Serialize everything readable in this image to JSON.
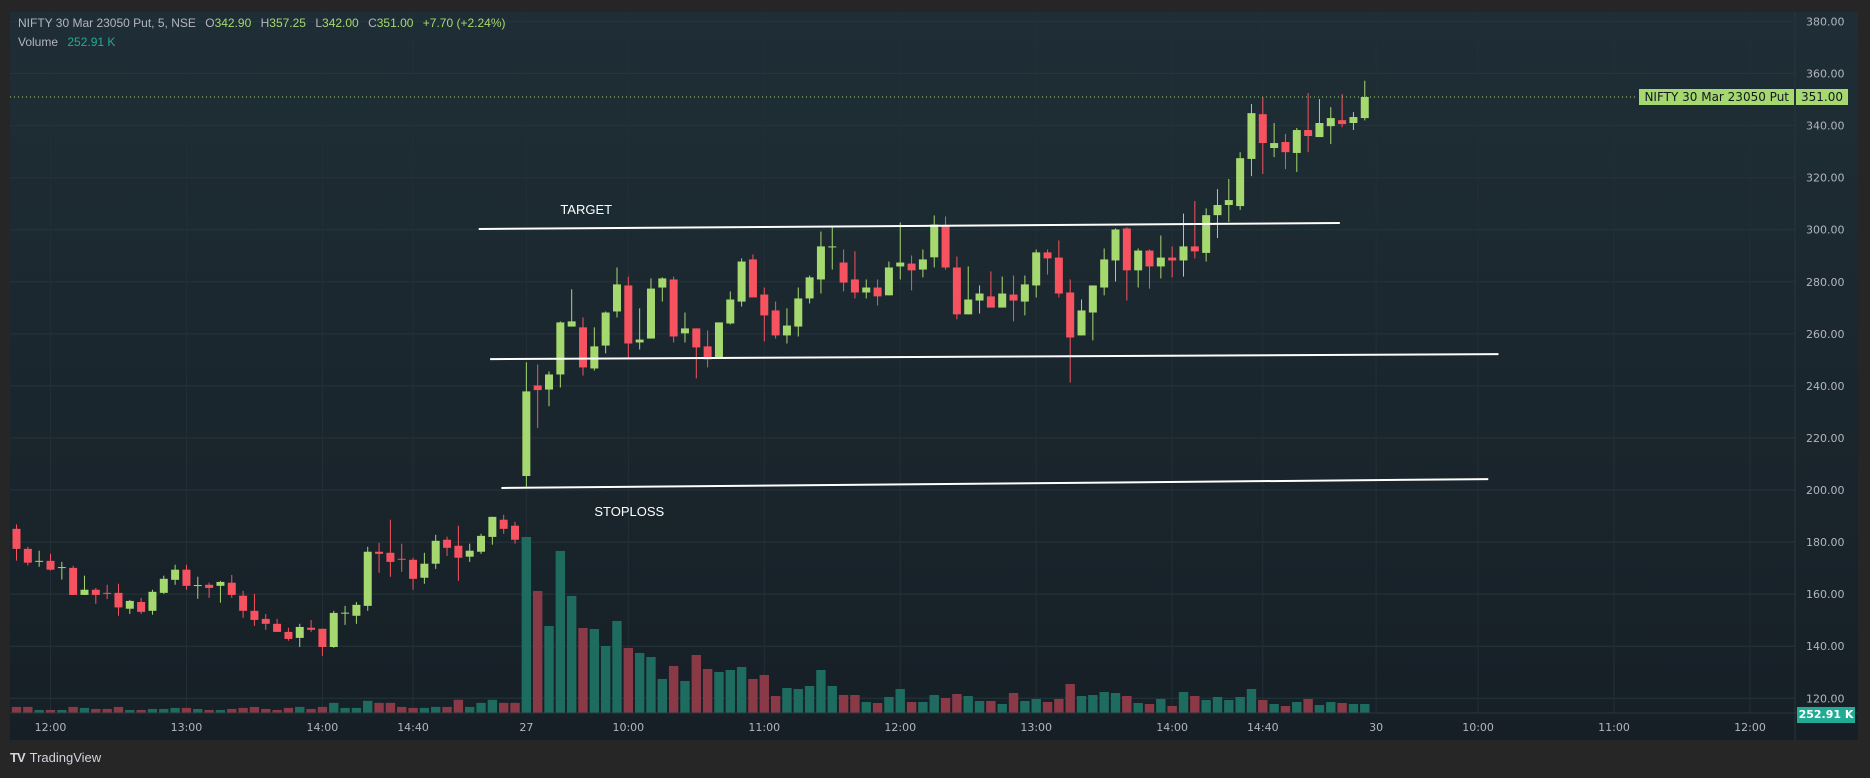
{
  "legend": {
    "symbol": "NIFTY 30 Mar 23050 Put, 5, NSE",
    "o_label": "O",
    "open": "342.90",
    "h_label": "H",
    "high": "357.25",
    "l_label": "L",
    "low": "342.00",
    "c_label": "C",
    "close": "351.00",
    "change": "+7.70 (+2.24%)",
    "volume_label": "Volume",
    "volume_value": "252.91 K"
  },
  "price_tag": {
    "name": "NIFTY 30 Mar 23050 Put",
    "value": "351.00"
  },
  "volume_tag": "252.91 K",
  "footer": {
    "brand": "TradingView",
    "logo": "TV"
  },
  "colors": {
    "up": "#a5d86e",
    "down": "#f7525f",
    "vol_up": "#1e6b60",
    "vol_down": "#8a3a46",
    "volume_tag": "#22ab94"
  },
  "chart_data": {
    "type": "candlestick",
    "title": "NIFTY 30 Mar 23050 Put, 5, NSE",
    "ylim": [
      120,
      380
    ],
    "y_ticks": [
      "120.00",
      "140.00",
      "160.00",
      "180.00",
      "200.00",
      "220.00",
      "240.00",
      "260.00",
      "280.00",
      "300.00",
      "320.00",
      "340.00",
      "360.00",
      "380.00"
    ],
    "y_tick_values": [
      120,
      140,
      160,
      180,
      200,
      220,
      240,
      260,
      280,
      300,
      320,
      340,
      360,
      380
    ],
    "x_ticks": [
      {
        "index": 3,
        "label": "12:00"
      },
      {
        "index": 15,
        "label": "13:00"
      },
      {
        "index": 27,
        "label": "14:00"
      },
      {
        "index": 35,
        "label": "14:40"
      },
      {
        "index": 45,
        "label": "27"
      },
      {
        "index": 54,
        "label": "10:00"
      },
      {
        "index": 66,
        "label": "11:00"
      },
      {
        "index": 78,
        "label": "12:00"
      },
      {
        "index": 90,
        "label": "13:00"
      },
      {
        "index": 102,
        "label": "14:00"
      },
      {
        "index": 110,
        "label": "14:40"
      },
      {
        "index": 120,
        "label": "30"
      },
      {
        "index": 129,
        "label": "10:00"
      },
      {
        "index": 141,
        "label": "11:00"
      },
      {
        "index": 153,
        "label": "12:00"
      }
    ],
    "ohlc": [
      [
        185.1,
        186.8,
        172.9,
        177.4
      ],
      [
        177.4,
        178.2,
        171.0,
        172.1
      ],
      [
        172.5,
        176.7,
        170.5,
        172.8
      ],
      [
        172.8,
        175.5,
        169.1,
        169.4
      ],
      [
        170.2,
        172.4,
        165.6,
        170.4
      ],
      [
        170.1,
        170.9,
        159.7,
        159.7
      ],
      [
        159.7,
        167.1,
        159.7,
        161.7
      ],
      [
        161.7,
        162.4,
        156.3,
        159.7
      ],
      [
        160.5,
        163.6,
        158.1,
        160.3
      ],
      [
        160.5,
        164.0,
        151.7,
        154.9
      ],
      [
        154.4,
        157.8,
        152.4,
        157.4
      ],
      [
        157.0,
        158.6,
        152.4,
        153.2
      ],
      [
        153.6,
        161.7,
        152.1,
        160.9
      ],
      [
        160.5,
        167.1,
        160.1,
        165.9
      ],
      [
        165.5,
        171.3,
        163.6,
        169.4
      ],
      [
        169.4,
        171.3,
        161.7,
        163.2
      ],
      [
        163.3,
        166.7,
        158.2,
        163.5
      ],
      [
        163.6,
        164.4,
        158.6,
        162.4
      ],
      [
        163.2,
        165.1,
        156.7,
        164.7
      ],
      [
        164.4,
        167.4,
        158.6,
        159.7
      ],
      [
        159.4,
        161.3,
        150.9,
        153.6
      ],
      [
        153.6,
        160.1,
        147.8,
        150.1
      ],
      [
        150.5,
        152.4,
        146.3,
        148.6
      ],
      [
        148.6,
        150.5,
        145.5,
        145.5
      ],
      [
        145.5,
        147.1,
        142.1,
        142.8
      ],
      [
        143.2,
        148.6,
        139.7,
        147.4
      ],
      [
        147.1,
        150.1,
        145.5,
        146.3
      ],
      [
        146.7,
        146.7,
        136.3,
        139.7
      ],
      [
        139.7,
        153.6,
        139.4,
        152.8
      ],
      [
        152.6,
        155.5,
        148.2,
        152.9
      ],
      [
        151.7,
        157.0,
        148.6,
        155.9
      ],
      [
        155.5,
        178.2,
        153.6,
        176.3
      ],
      [
        176.3,
        179.7,
        168.2,
        175.5
      ],
      [
        175.9,
        188.6,
        166.7,
        172.4
      ],
      [
        173.6,
        179.4,
        168.6,
        173.4
      ],
      [
        173.2,
        174.0,
        161.7,
        165.9
      ],
      [
        166.3,
        175.9,
        164.0,
        171.7
      ],
      [
        171.7,
        182.8,
        169.7,
        180.5
      ],
      [
        180.9,
        182.1,
        174.7,
        177.8
      ],
      [
        178.6,
        186.3,
        165.1,
        174.0
      ],
      [
        174.4,
        179.4,
        172.4,
        176.7
      ],
      [
        176.3,
        183.2,
        175.5,
        182.4
      ],
      [
        182.0,
        189.7,
        179.0,
        189.7
      ],
      [
        188.6,
        190.5,
        183.2,
        185.1
      ],
      [
        186.3,
        187.8,
        179.4,
        180.9
      ],
      [
        205.4,
        249.1,
        200.7,
        237.9
      ],
      [
        240.2,
        248.2,
        223.8,
        238.4
      ],
      [
        238.6,
        245.6,
        232.2,
        244.4
      ],
      [
        244.4,
        264.8,
        239.4,
        264.4
      ],
      [
        262.8,
        277.1,
        262.8,
        264.8
      ],
      [
        262.5,
        266.3,
        244.0,
        247.1
      ],
      [
        246.7,
        262.5,
        245.9,
        255.2
      ],
      [
        255.5,
        268.6,
        252.5,
        268.2
      ],
      [
        268.6,
        285.5,
        266.3,
        279.0
      ],
      [
        278.6,
        282.0,
        250.2,
        256.3
      ],
      [
        256.7,
        269.8,
        254.0,
        257.8
      ],
      [
        258.2,
        281.3,
        258.2,
        277.4
      ],
      [
        277.8,
        281.7,
        272.4,
        281.3
      ],
      [
        280.9,
        282.0,
        256.7,
        259.0
      ],
      [
        260.2,
        268.2,
        256.7,
        262.1
      ],
      [
        262.1,
        262.1,
        242.9,
        254.8
      ],
      [
        255.2,
        261.3,
        247.1,
        250.2
      ],
      [
        250.6,
        264.4,
        250.6,
        264.4
      ],
      [
        264.0,
        276.3,
        263.6,
        273.2
      ],
      [
        272.4,
        289.0,
        270.5,
        287.8
      ],
      [
        288.6,
        290.5,
        274.0,
        274.0
      ],
      [
        275.1,
        277.8,
        257.1,
        267.1
      ],
      [
        269.0,
        272.4,
        258.2,
        259.4
      ],
      [
        259.4,
        269.8,
        256.3,
        263.2
      ],
      [
        262.8,
        277.8,
        259.0,
        273.6
      ],
      [
        273.6,
        282.4,
        271.7,
        281.7
      ],
      [
        280.9,
        299.3,
        275.5,
        293.6
      ],
      [
        293.2,
        301.6,
        284.7,
        293.6
      ],
      [
        287.4,
        292.4,
        276.3,
        279.7
      ],
      [
        280.9,
        291.7,
        273.6,
        275.9
      ],
      [
        275.9,
        280.9,
        273.6,
        277.8
      ],
      [
        277.8,
        280.9,
        270.9,
        274.4
      ],
      [
        274.8,
        287.8,
        274.8,
        285.5
      ],
      [
        285.9,
        302.8,
        280.9,
        287.4
      ],
      [
        287.0,
        290.1,
        276.7,
        284.4
      ],
      [
        284.7,
        292.4,
        281.7,
        288.6
      ],
      [
        289.4,
        305.5,
        285.5,
        302.0
      ],
      [
        301.3,
        305.1,
        284.7,
        285.5
      ],
      [
        285.5,
        289.7,
        265.6,
        267.5
      ],
      [
        267.5,
        285.9,
        267.5,
        273.2
      ],
      [
        272.8,
        278.6,
        267.8,
        275.5
      ],
      [
        274.4,
        284.0,
        270.1,
        270.1
      ],
      [
        270.1,
        282.0,
        270.1,
        275.5
      ],
      [
        275.1,
        282.4,
        264.8,
        272.8
      ],
      [
        272.4,
        282.4,
        267.1,
        279.0
      ],
      [
        278.6,
        292.4,
        274.0,
        291.3
      ],
      [
        291.3,
        292.4,
        282.8,
        289.0
      ],
      [
        289.3,
        295.9,
        274.0,
        275.5
      ],
      [
        275.9,
        280.9,
        241.3,
        258.6
      ],
      [
        259.4,
        273.2,
        259.4,
        269.0
      ],
      [
        268.2,
        278.6,
        257.5,
        278.6
      ],
      [
        277.8,
        292.8,
        274.8,
        288.6
      ],
      [
        288.2,
        300.5,
        280.1,
        300.1
      ],
      [
        300.5,
        300.9,
        272.8,
        284.4
      ],
      [
        284.4,
        292.8,
        277.8,
        292.0
      ],
      [
        292.0,
        292.4,
        277.4,
        285.9
      ],
      [
        285.9,
        297.8,
        281.3,
        289.3
      ],
      [
        289.3,
        293.6,
        281.7,
        288.2
      ],
      [
        288.2,
        306.2,
        282.0,
        293.6
      ],
      [
        293.6,
        311.0,
        289.0,
        291.7
      ],
      [
        291.1,
        308.2,
        287.8,
        305.6
      ],
      [
        305.6,
        315.6,
        296.8,
        309.5
      ],
      [
        309.5,
        319.5,
        303.0,
        311.4
      ],
      [
        309.1,
        329.8,
        307.6,
        327.5
      ],
      [
        327.2,
        348.3,
        320.6,
        344.8
      ],
      [
        344.4,
        351.0,
        321.4,
        333.3
      ],
      [
        331.4,
        341.0,
        327.9,
        333.3
      ],
      [
        333.7,
        336.8,
        323.3,
        329.8
      ],
      [
        329.5,
        339.1,
        322.2,
        338.3
      ],
      [
        338.3,
        352.5,
        329.8,
        336.0
      ],
      [
        335.6,
        350.2,
        335.6,
        341.0
      ],
      [
        339.8,
        347.1,
        332.9,
        342.9
      ],
      [
        342.1,
        352.1,
        339.4,
        340.6
      ],
      [
        341.0,
        345.2,
        338.3,
        343.3
      ],
      [
        342.9,
        357.25,
        342.0,
        351.0
      ]
    ],
    "volume_k": [
      171,
      171,
      86,
      86,
      86,
      171,
      143,
      114,
      114,
      171,
      86,
      86,
      114,
      114,
      143,
      143,
      114,
      86,
      86,
      114,
      143,
      171,
      114,
      86,
      143,
      171,
      114,
      171,
      285,
      143,
      143,
      342,
      285,
      285,
      171,
      143,
      143,
      171,
      171,
      371,
      171,
      285,
      371,
      285,
      285,
      4947,
      3429,
      2446,
      4554,
      3289,
      2389,
      2361,
      1883,
      2586,
      1827,
      1687,
      1574,
      956,
      1321,
      900,
      1630,
      1237,
      1153,
      1209,
      1293,
      956,
      1068,
      478,
      703,
      675,
      759,
      1209,
      759,
      506,
      506,
      309,
      281,
      450,
      675,
      309,
      309,
      506,
      422,
      534,
      478,
      337,
      337,
      253,
      562,
      337,
      394,
      309,
      394,
      815,
      478,
      506,
      590,
      562,
      478,
      281,
      253,
      394,
      197,
      590,
      478,
      365,
      450,
      365,
      450,
      675,
      365,
      253,
      197,
      309,
      394,
      225,
      309,
      281,
      253,
      252.91
    ],
    "last_price": 351.0,
    "annotations": {
      "lines": [
        {
          "name": "target-line",
          "from": [
            40.8,
            300.3
          ],
          "to": [
            116.8,
            302.6
          ]
        },
        {
          "name": "support-line",
          "from": [
            41.8,
            250.3
          ],
          "to": [
            130.8,
            252.2
          ]
        },
        {
          "name": "stoploss-line",
          "from": [
            42.8,
            200.8
          ],
          "to": [
            129.9,
            204.2
          ]
        }
      ],
      "texts": [
        {
          "name": "target-text",
          "text": "TARGET",
          "at": [
            48,
            306
          ]
        },
        {
          "name": "stoploss-text",
          "text": "STOPLOSS",
          "at": [
            51,
            190
          ]
        }
      ]
    }
  }
}
